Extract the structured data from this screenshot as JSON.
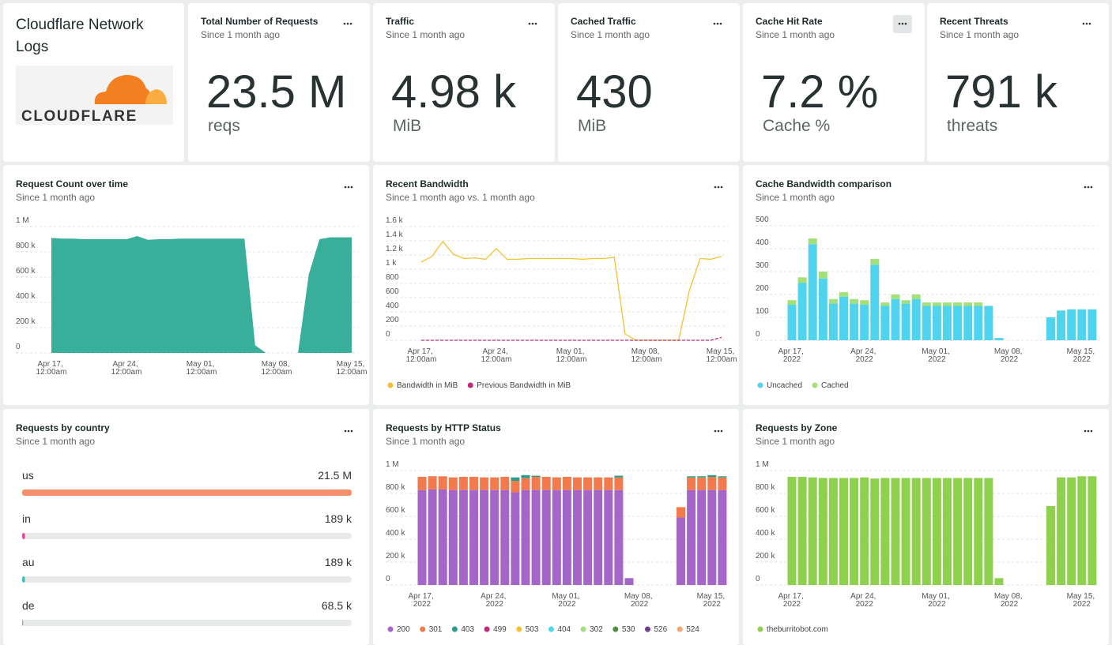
{
  "header": {
    "title": "Cloudflare Network Logs",
    "logo_text": "CLOUDFLARE"
  },
  "billboards": [
    {
      "title": "Total Number of Requests",
      "subtitle": "Since 1 month ago",
      "value": "23.5 M",
      "unit": "reqs"
    },
    {
      "title": "Traffic",
      "subtitle": "Since 1 month ago",
      "value": "4.98 k",
      "unit": "MiB"
    },
    {
      "title": "Cached Traffic",
      "subtitle": "Since 1 month ago",
      "value": "430",
      "unit": "MiB"
    },
    {
      "title": "Cache Hit Rate",
      "subtitle": "Since 1 month ago",
      "value": "7.2 %",
      "unit": "Cache %"
    },
    {
      "title": "Recent Threats",
      "subtitle": "Since 1 month ago",
      "value": "791 k",
      "unit": "threats"
    }
  ],
  "chart_data": [
    {
      "type": "area",
      "title": "Request Count over time",
      "subtitle": "Since 1 month ago",
      "color": "#39ae9b",
      "categories": [
        "Apr 17, 12:00am",
        null,
        null,
        null,
        null,
        null,
        null,
        "Apr 24, 12:00am",
        null,
        null,
        null,
        null,
        null,
        null,
        "May 01, 12:00am",
        null,
        null,
        null,
        null,
        null,
        null,
        "May 08, 12:00am",
        null,
        null,
        null,
        null,
        null,
        null,
        "May 15, 12:00am"
      ],
      "values": [
        910000,
        905000,
        905000,
        900000,
        900000,
        900000,
        900000,
        900000,
        925000,
        895000,
        900000,
        900000,
        905000,
        905000,
        905000,
        905000,
        905000,
        905000,
        905000,
        60000,
        0,
        0,
        0,
        0,
        620000,
        900000,
        915000,
        915000,
        915000
      ],
      "ylim": [
        0,
        1000000
      ],
      "yticks": [
        0,
        {
          "value": 200000,
          "label": "200 k"
        },
        {
          "value": 400000,
          "label": "400 k"
        },
        {
          "value": 600000,
          "label": "600 k"
        },
        {
          "value": 800000,
          "label": "800 k"
        },
        {
          "value": 1000000,
          "label": "1 M"
        }
      ],
      "grid": true
    },
    {
      "type": "line",
      "title": "Recent Bandwidth",
      "subtitle": "Since 1 month ago vs. 1 month ago",
      "categories": [
        "Apr 17, 12:00am",
        null,
        null,
        null,
        null,
        null,
        null,
        "Apr 24, 12:00am",
        null,
        null,
        null,
        null,
        null,
        null,
        "May 01, 12:00am",
        null,
        null,
        null,
        null,
        null,
        null,
        "May 08, 12:00am",
        null,
        null,
        null,
        null,
        null,
        null,
        "May 15, 12:00am"
      ],
      "series": [
        {
          "name": "Bandwidth in MiB",
          "color": "#f5c131",
          "style": "solid",
          "values": [
            1100,
            1180,
            1390,
            1210,
            1150,
            1160,
            1140,
            1290,
            1140,
            1140,
            1150,
            1150,
            1150,
            1150,
            1150,
            1140,
            1150,
            1150,
            1170,
            90,
            0,
            0,
            0,
            0,
            0,
            700,
            1150,
            1140,
            1180
          ]
        },
        {
          "name": "Previous Bandwidth in MiB",
          "color": "#c2297c",
          "style": "dashed",
          "values": [
            0,
            0,
            0,
            0,
            0,
            0,
            0,
            0,
            0,
            0,
            0,
            0,
            0,
            0,
            0,
            0,
            0,
            0,
            0,
            0,
            0,
            0,
            0,
            0,
            0,
            0,
            0,
            0,
            40
          ]
        }
      ],
      "ylim": [
        0,
        1600
      ],
      "yticks": [
        0,
        200,
        400,
        600,
        800,
        {
          "value": 1000,
          "label": "1 k"
        },
        {
          "value": 1200,
          "label": "1.2 k"
        },
        {
          "value": 1400,
          "label": "1.4 k"
        },
        {
          "value": 1600,
          "label": "1.6 k"
        }
      ],
      "grid": true
    },
    {
      "type": "bar",
      "stacked": true,
      "title": "Cache Bandwidth comparison",
      "subtitle": "Since 1 month ago",
      "categories": [
        "Apr 17, 2022",
        null,
        null,
        null,
        null,
        null,
        null,
        "Apr 24, 2022",
        null,
        null,
        null,
        null,
        null,
        null,
        "May 01, 2022",
        null,
        null,
        null,
        null,
        null,
        null,
        "May 08, 2022",
        null,
        null,
        null,
        null,
        null,
        null,
        "May 15, 2022",
        null
      ],
      "series": [
        {
          "name": "Uncached",
          "color": "#4fd3ef",
          "values": [
            155,
            250,
            420,
            270,
            160,
            190,
            160,
            155,
            330,
            150,
            180,
            160,
            180,
            150,
            150,
            150,
            150,
            150,
            150,
            150,
            10,
            0,
            0,
            0,
            0,
            100,
            130,
            135,
            135,
            135
          ]
        },
        {
          "name": "Cached",
          "color": "#a3e07a",
          "values": [
            20,
            25,
            25,
            30,
            20,
            20,
            20,
            20,
            25,
            15,
            20,
            15,
            20,
            15,
            15,
            15,
            15,
            15,
            15,
            0,
            0,
            0,
            0,
            0,
            0,
            0,
            0,
            0,
            0,
            0
          ]
        }
      ],
      "ylim": [
        0,
        500
      ],
      "yticks": [
        0,
        100,
        200,
        300,
        400,
        500
      ],
      "grid": true
    },
    {
      "type": "bar",
      "horizontal": true,
      "title": "Requests by country",
      "subtitle": "Since 1 month ago",
      "categories": [
        "us",
        "in",
        "au",
        "de"
      ],
      "values": [
        21500000,
        189000,
        189000,
        68500
      ],
      "value_labels": [
        "21.5 M",
        "189 k",
        "189 k",
        "68.5 k"
      ],
      "colors": [
        "#f4906c",
        "#e8489a",
        "#3cc6b8",
        "#9aa0a6"
      ]
    },
    {
      "type": "bar",
      "stacked": true,
      "title": "Requests by HTTP Status",
      "subtitle": "Since 1 month ago",
      "categories": [
        "Apr 17, 2022",
        null,
        null,
        null,
        null,
        null,
        null,
        "Apr 24, 2022",
        null,
        null,
        null,
        null,
        null,
        null,
        "May 01, 2022",
        null,
        null,
        null,
        null,
        null,
        null,
        "May 08, 2022",
        null,
        null,
        null,
        null,
        null,
        null,
        "May 15, 2022",
        null
      ],
      "series": [
        {
          "name": "200",
          "color": "#a466c9",
          "values": [
            830000,
            835000,
            835000,
            830000,
            830000,
            830000,
            830000,
            830000,
            830000,
            810000,
            830000,
            830000,
            830000,
            830000,
            830000,
            830000,
            830000,
            830000,
            830000,
            830000,
            60000,
            0,
            0,
            0,
            0,
            590000,
            830000,
            830000,
            830000,
            830000
          ]
        },
        {
          "name": "301",
          "color": "#f27a4c",
          "values": [
            115000,
            115000,
            115000,
            110000,
            115000,
            115000,
            110000,
            110000,
            115000,
            100000,
            105000,
            115000,
            115000,
            110000,
            115000,
            110000,
            110000,
            110000,
            110000,
            110000,
            0,
            0,
            0,
            0,
            0,
            90000,
            110000,
            110000,
            115000,
            110000
          ]
        },
        {
          "name": "403",
          "color": "#2a9d8f",
          "values": [
            0,
            0,
            0,
            0,
            0,
            0,
            0,
            0,
            0,
            30000,
            25000,
            10000,
            0,
            0,
            0,
            0,
            0,
            0,
            0,
            15000,
            0,
            0,
            0,
            0,
            0,
            0,
            10000,
            10000,
            15000,
            10000
          ]
        },
        {
          "name": "499",
          "color": "#c2297c",
          "values": [
            0,
            0,
            0,
            0,
            0,
            0,
            0,
            0,
            0,
            0,
            0,
            0,
            0,
            0,
            0,
            0,
            0,
            0,
            0,
            0,
            0,
            0,
            0,
            0,
            0,
            0,
            0,
            0,
            0,
            0
          ]
        },
        {
          "name": "503",
          "color": "#f5c131",
          "values": [
            0,
            0,
            0,
            0,
            0,
            0,
            0,
            0,
            0,
            0,
            0,
            0,
            0,
            0,
            0,
            0,
            0,
            0,
            0,
            0,
            0,
            0,
            0,
            0,
            0,
            0,
            0,
            0,
            0,
            0
          ]
        },
        {
          "name": "404",
          "color": "#4fd3ef",
          "values": [
            0,
            0,
            0,
            0,
            0,
            0,
            0,
            0,
            0,
            0,
            0,
            0,
            0,
            0,
            0,
            0,
            0,
            0,
            0,
            0,
            0,
            0,
            0,
            0,
            0,
            0,
            0,
            0,
            0,
            0
          ]
        },
        {
          "name": "302",
          "color": "#a3e07a",
          "values": [
            0,
            0,
            0,
            0,
            0,
            0,
            0,
            0,
            0,
            0,
            0,
            0,
            0,
            0,
            0,
            0,
            0,
            0,
            0,
            0,
            0,
            0,
            0,
            0,
            0,
            0,
            0,
            0,
            0,
            0
          ]
        },
        {
          "name": "530",
          "color": "#4f8f3a",
          "values": [
            0,
            0,
            0,
            0,
            0,
            0,
            0,
            0,
            0,
            0,
            0,
            0,
            0,
            0,
            0,
            0,
            0,
            0,
            0,
            0,
            0,
            0,
            0,
            0,
            0,
            0,
            0,
            0,
            0,
            0
          ]
        },
        {
          "name": "526",
          "color": "#6a3d8f",
          "values": [
            0,
            0,
            0,
            0,
            0,
            0,
            0,
            0,
            0,
            0,
            0,
            0,
            0,
            0,
            0,
            0,
            0,
            0,
            0,
            0,
            0,
            0,
            0,
            0,
            0,
            0,
            0,
            0,
            0,
            0
          ]
        },
        {
          "name": "524",
          "color": "#f7a46e",
          "values": [
            0,
            0,
            0,
            0,
            0,
            0,
            0,
            0,
            0,
            0,
            0,
            0,
            0,
            0,
            0,
            0,
            0,
            0,
            0,
            0,
            0,
            0,
            0,
            0,
            0,
            0,
            0,
            0,
            0,
            0
          ]
        }
      ],
      "ylim": [
        0,
        1000000
      ],
      "yticks": [
        0,
        {
          "value": 200000,
          "label": "200 k"
        },
        {
          "value": 400000,
          "label": "400 k"
        },
        {
          "value": 600000,
          "label": "600 k"
        },
        {
          "value": 800000,
          "label": "800 k"
        },
        {
          "value": 1000000,
          "label": "1 M"
        }
      ],
      "grid": true
    },
    {
      "type": "bar",
      "stacked": true,
      "title": "Requests by Zone",
      "subtitle": "Since 1 month ago",
      "categories": [
        "Apr 17, 2022",
        null,
        null,
        null,
        null,
        null,
        null,
        "Apr 24, 2022",
        null,
        null,
        null,
        null,
        null,
        null,
        "May 01, 2022",
        null,
        null,
        null,
        null,
        null,
        null,
        "May 08, 2022",
        null,
        null,
        null,
        null,
        null,
        null,
        "May 15, 2022",
        null
      ],
      "series": [
        {
          "name": "theburritobot.com",
          "color": "#8fd14f",
          "values": [
            945000,
            945000,
            940000,
            935000,
            935000,
            935000,
            935000,
            940000,
            930000,
            935000,
            935000,
            935000,
            935000,
            935000,
            935000,
            935000,
            935000,
            935000,
            935000,
            935000,
            60000,
            0,
            0,
            0,
            0,
            690000,
            940000,
            940000,
            950000,
            950000
          ]
        }
      ],
      "ylim": [
        0,
        1000000
      ],
      "yticks": [
        0,
        {
          "value": 200000,
          "label": "200 k"
        },
        {
          "value": 400000,
          "label": "400 k"
        },
        {
          "value": 600000,
          "label": "600 k"
        },
        {
          "value": 800000,
          "label": "800 k"
        },
        {
          "value": 1000000,
          "label": "1 M"
        }
      ],
      "grid": true
    }
  ]
}
